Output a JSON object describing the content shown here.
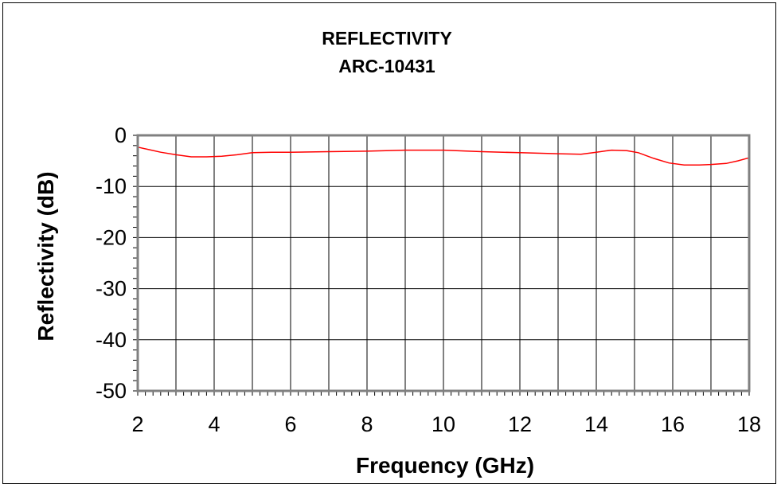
{
  "chart_data": {
    "type": "line",
    "title": "REFLECTIVITY",
    "subtitle": "ARC-10431",
    "xlabel": "Frequency (GHz)",
    "ylabel": "Reflectivity (dB)",
    "xlim": [
      2,
      18
    ],
    "ylim": [
      -50,
      0
    ],
    "x_ticks": [
      2,
      4,
      6,
      8,
      10,
      12,
      14,
      16,
      18
    ],
    "y_ticks": [
      0,
      -10,
      -20,
      -30,
      -40,
      -50
    ],
    "x_tick_labels": [
      "2",
      "4",
      "6",
      "8",
      "10",
      "12",
      "14",
      "16",
      "18"
    ],
    "y_tick_labels": [
      "0",
      "-10",
      "-20",
      "-30",
      "-40",
      "-50"
    ],
    "grid": true,
    "legend": "none",
    "series_color": "#ff0000",
    "series": [
      {
        "x": [
          2.0,
          2.3,
          2.6,
          3.0,
          3.4,
          3.8,
          4.2,
          4.6,
          5.0,
          5.5,
          6.0,
          7.0,
          8.0,
          9.0,
          10.0,
          11.0,
          12.0,
          13.0,
          13.6,
          14.0,
          14.4,
          14.8,
          15.1,
          15.5,
          15.9,
          16.3,
          16.7,
          17.0,
          17.4,
          17.7,
          18.0
        ],
        "values": [
          -2.3,
          -2.8,
          -3.3,
          -3.8,
          -4.2,
          -4.2,
          -4.1,
          -3.8,
          -3.4,
          -3.3,
          -3.3,
          -3.2,
          -3.1,
          -2.9,
          -2.9,
          -3.2,
          -3.4,
          -3.6,
          -3.7,
          -3.3,
          -2.9,
          -3.0,
          -3.4,
          -4.5,
          -5.4,
          -5.8,
          -5.8,
          -5.7,
          -5.5,
          -5.0,
          -4.4
        ]
      }
    ]
  }
}
